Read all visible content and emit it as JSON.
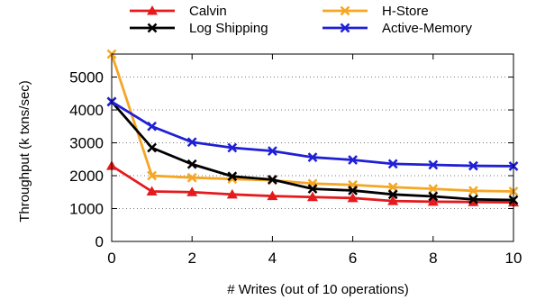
{
  "chart_data": {
    "type": "line",
    "xlabel": "# Writes (out of 10 operations)",
    "ylabel": "Throughput (k txns/sec)",
    "xlim": [
      0,
      10
    ],
    "ylim": [
      0,
      5700
    ],
    "xticks": [
      0,
      2,
      4,
      6,
      8,
      10
    ],
    "yticks": [
      0,
      1000,
      2000,
      3000,
      4000,
      5000
    ],
    "grid": "horizontal dotted",
    "legend_position": "top",
    "x": [
      0,
      1,
      2,
      3,
      4,
      5,
      6,
      7,
      8,
      9,
      10
    ],
    "series": [
      {
        "name": "Calvin",
        "color": "#e41a1c",
        "marker": "triangle",
        "values": [
          2300,
          1520,
          1500,
          1430,
          1380,
          1350,
          1320,
          1230,
          1210,
          1200,
          1190
        ]
      },
      {
        "name": "H-Store",
        "color": "#f5a623",
        "marker": "x",
        "values": [
          5700,
          2000,
          1940,
          1900,
          1860,
          1760,
          1720,
          1650,
          1600,
          1540,
          1520
        ]
      },
      {
        "name": "Log Shipping",
        "color": "#000000",
        "marker": "x",
        "values": [
          4250,
          2850,
          2350,
          1980,
          1880,
          1600,
          1550,
          1430,
          1370,
          1280,
          1260
        ]
      },
      {
        "name": "Active-Memory",
        "color": "#1f1fd6",
        "marker": "x",
        "values": [
          4250,
          3500,
          3020,
          2850,
          2750,
          2560,
          2480,
          2360,
          2330,
          2300,
          2290
        ]
      }
    ]
  }
}
